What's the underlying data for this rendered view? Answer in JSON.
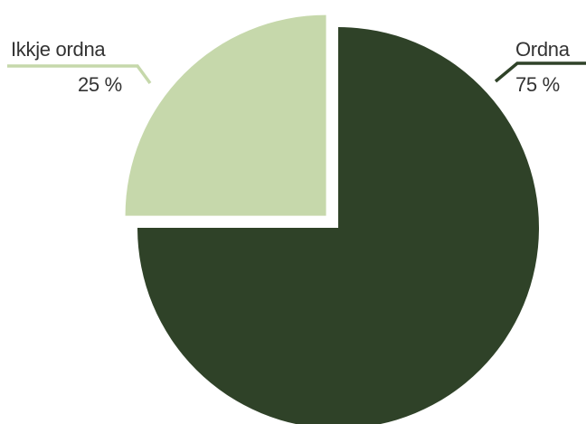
{
  "chart_data": {
    "type": "pie",
    "slices": [
      {
        "label": "Ordna",
        "value": 75,
        "value_label": "75 %",
        "color": "#2f4228"
      },
      {
        "label": "Ikkje ordna",
        "value": 25,
        "value_label": "25 %",
        "color": "#c6d8ab"
      }
    ],
    "legend": "none"
  }
}
